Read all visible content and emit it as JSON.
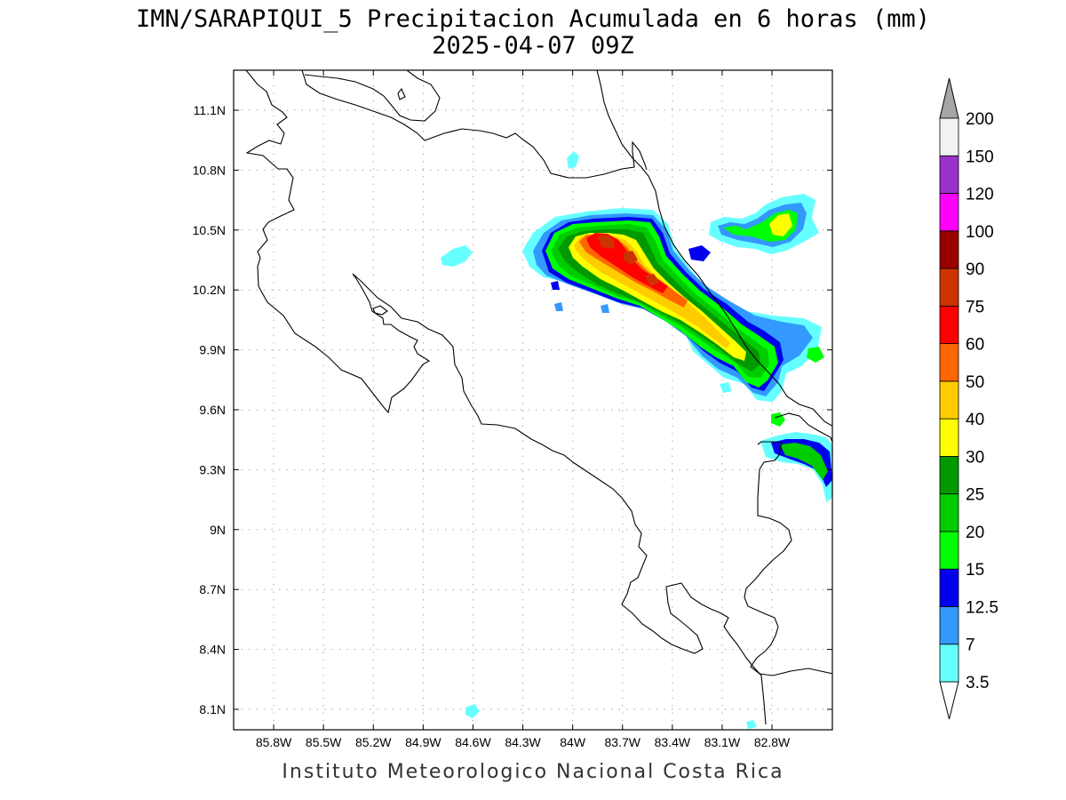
{
  "title": {
    "line1": "IMN/SARAPIQUI_5 Precipitacion Acumulada en 6 horas (mm)",
    "line2": "2025-04-07 09Z"
  },
  "credit": "Instituto Meteorologico Nacional Costa Rica",
  "map": {
    "lon_range": [
      -86.0,
      -83.0
    ],
    "lat_range": [
      8.0,
      11.3
    ],
    "lon_ticks": [
      -85.8,
      -85.5,
      -85.2,
      -84.9,
      -84.6,
      -84.3,
      -84.0,
      -83.7,
      -83.4,
      -83.1,
      -82.8
    ],
    "lon_labels": [
      "85.8W",
      "85.5W",
      "85.2W",
      "84.9W",
      "84.6W",
      "84.3W",
      "84W",
      "83.7W",
      "83.4W",
      "83.1W",
      "82.8W"
    ],
    "lat_ticks": [
      8.1,
      8.4,
      8.7,
      9.0,
      9.3,
      9.6,
      9.9,
      10.2,
      10.5,
      10.8,
      11.1
    ],
    "lat_labels": [
      "8.1N",
      "8.4N",
      "8.7N",
      "9N",
      "9.3N",
      "9.6N",
      "9.9N",
      "10.2N",
      "10.5N",
      "10.8N",
      "11.1N"
    ],
    "grid": true
  },
  "colorbar": {
    "levels": [
      "3.5",
      "7",
      "12.5",
      "15",
      "20",
      "25",
      "30",
      "40",
      "50",
      "60",
      "75",
      "90",
      "100",
      "120",
      "150",
      "200"
    ],
    "colors": [
      "#66ffff",
      "#3399ff",
      "#0000ee",
      "#00ff00",
      "#00cc00",
      "#009900",
      "#ffff00",
      "#ffcc00",
      "#ff6600",
      "#ff0000",
      "#cc3300",
      "#990000",
      "#ff00ff",
      "#9933cc",
      "#f2f2f2"
    ],
    "under_color": "#ffffff",
    "over_color": "#a6a6a6"
  }
}
